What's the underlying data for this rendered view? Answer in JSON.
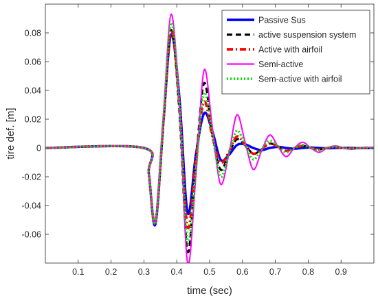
{
  "chart_data": {
    "type": "line",
    "title": "",
    "xlabel": "time (sec)",
    "ylabel": "tire def. [m]",
    "xlim": [
      0,
      1
    ],
    "ylim": [
      -0.08,
      0.1
    ],
    "xticks": [
      0.1,
      0.2,
      0.3,
      0.4,
      0.5,
      0.6,
      0.7,
      0.8,
      0.9
    ],
    "xtick_labels": [
      "0.1",
      "0.2",
      "0.3",
      "0.4",
      "0.5",
      "0.6",
      "0.7",
      "0.8",
      "0.9"
    ],
    "yticks": [
      -0.06,
      -0.04,
      -0.02,
      0,
      0.02,
      0.04,
      0.06,
      0.08
    ],
    "ytick_labels": [
      "-0.06",
      "-0.04",
      "-0.02",
      "0",
      "0.02",
      "0.04",
      "0.06",
      "0.08"
    ],
    "grid": false,
    "legend_position": "top-right",
    "series": [
      {
        "name": "Passive Sus",
        "color": "#0000ff",
        "style": "solid",
        "x": [
          0,
          0.3,
          0.315,
          0.335,
          0.36,
          0.383,
          0.408,
          0.433,
          0.458,
          0.483,
          0.508,
          0.533,
          0.558,
          0.583,
          0.608,
          0.633,
          0.658,
          0.683,
          0.708,
          0.733,
          0.758,
          0.783,
          0.808,
          0.833,
          0.858,
          0.883,
          0.908,
          0.933,
          0.958,
          0.983,
          1.0
        ],
        "y": [
          0,
          0,
          -0.018,
          -0.053,
          0.02,
          0.079,
          0.035,
          -0.045,
          -0.005,
          0.024,
          0.012,
          -0.008,
          -0.005,
          0.002,
          0.0025,
          0,
          -0.0015,
          0,
          0.0008,
          0,
          -0.0005,
          0,
          0.0003,
          0,
          -0.0002,
          0,
          0.0001,
          0,
          -0.0001,
          0,
          0
        ]
      },
      {
        "name": "active suspension system",
        "color": "#000000",
        "style": "dashed",
        "x": [
          0,
          0.3,
          0.315,
          0.335,
          0.36,
          0.383,
          0.408,
          0.433,
          0.458,
          0.483,
          0.508,
          0.533,
          0.558,
          0.583,
          0.608,
          0.633,
          0.658,
          0.683,
          0.708,
          0.733,
          0.758,
          0.783,
          0.808,
          0.833,
          0.858,
          0.883,
          0.908,
          0.933,
          0.958,
          0.983,
          1.0
        ],
        "y": [
          0,
          0,
          -0.018,
          -0.052,
          0.02,
          0.082,
          0.025,
          -0.072,
          -0.01,
          0.045,
          0.01,
          -0.015,
          -0.004,
          0.006,
          0.002,
          -0.004,
          -0.001,
          0.003,
          0.001,
          -0.002,
          0,
          0.0015,
          0,
          -0.001,
          0,
          0.0008,
          0,
          -0.0005,
          0,
          0.0002,
          0
        ]
      },
      {
        "name": "Active with airfoil",
        "color": "#ff0000",
        "style": "dashdot",
        "x": [
          0,
          0.3,
          0.315,
          0.335,
          0.36,
          0.383,
          0.408,
          0.433,
          0.458,
          0.483,
          0.508,
          0.533,
          0.558,
          0.583,
          0.608,
          0.633,
          0.658,
          0.683,
          0.708,
          0.733,
          0.758,
          0.783,
          0.808,
          0.833,
          0.858,
          0.883,
          0.908,
          0.933,
          0.958,
          0.983,
          1.0
        ],
        "y": [
          0,
          0,
          -0.018,
          -0.052,
          0.02,
          0.082,
          0.03,
          -0.055,
          -0.008,
          0.032,
          0.008,
          -0.01,
          -0.003,
          0.008,
          0.002,
          -0.004,
          -0.001,
          0.003,
          0.001,
          -0.002,
          0,
          0.0015,
          0,
          -0.001,
          0,
          0.0006,
          0,
          -0.0004,
          0,
          0.0002,
          0
        ]
      },
      {
        "name": "Semi-active",
        "color": "#ff00ff",
        "style": "solid",
        "x": [
          0,
          0.3,
          0.315,
          0.335,
          0.36,
          0.383,
          0.408,
          0.433,
          0.458,
          0.483,
          0.508,
          0.533,
          0.558,
          0.583,
          0.608,
          0.633,
          0.658,
          0.683,
          0.708,
          0.733,
          0.758,
          0.783,
          0.808,
          0.833,
          0.858,
          0.883,
          0.908,
          0.933,
          0.958,
          0.983,
          1.0
        ],
        "y": [
          0,
          0,
          -0.018,
          -0.052,
          0.025,
          0.093,
          0.03,
          -0.08,
          -0.02,
          0.054,
          0.015,
          -0.025,
          -0.005,
          0.023,
          0.004,
          -0.015,
          -0.002,
          0.009,
          0.001,
          -0.006,
          0,
          0.004,
          0,
          -0.003,
          0,
          0.0015,
          0,
          -0.001,
          0,
          0.0005,
          0
        ]
      },
      {
        "name": "Sem-active with airfoil",
        "color": "#00e000",
        "style": "dotted",
        "x": [
          0,
          0.3,
          0.315,
          0.335,
          0.36,
          0.383,
          0.408,
          0.433,
          0.458,
          0.483,
          0.508,
          0.533,
          0.558,
          0.583,
          0.608,
          0.633,
          0.658,
          0.683,
          0.708,
          0.733,
          0.758,
          0.783,
          0.808,
          0.833,
          0.858,
          0.883,
          0.908,
          0.933,
          0.958,
          0.983,
          1.0
        ],
        "y": [
          0,
          0,
          -0.018,
          -0.052,
          0.022,
          0.087,
          0.03,
          -0.065,
          -0.015,
          0.038,
          0.01,
          -0.02,
          -0.004,
          0.012,
          0.002,
          -0.008,
          -0.001,
          0.005,
          0.001,
          -0.003,
          0,
          0.002,
          0,
          -0.0015,
          0,
          0.001,
          0,
          -0.0005,
          0,
          0.0003,
          0
        ]
      }
    ]
  }
}
